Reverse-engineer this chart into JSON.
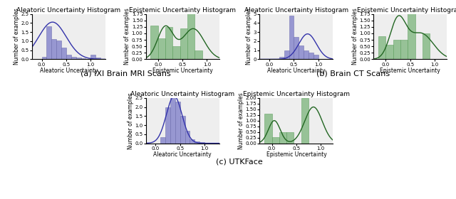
{
  "panels": [
    {
      "title": "Aleatoric Uncertainty Histogram",
      "xlabel": "Aleatoric Uncertainty",
      "ylabel": "Number of examples",
      "color": "#8888cc",
      "edge_color": "#6666aa",
      "curve_color": "#3333aa",
      "xlim": [
        -0.2,
        1.3
      ],
      "ylim": [
        0,
        2.5
      ],
      "yticks": [
        0.0,
        0.5,
        1.0,
        1.5,
        2.0,
        2.5
      ],
      "bar_edges": [
        -0.1,
        0.0,
        0.1,
        0.2,
        0.3,
        0.4,
        0.5,
        0.6,
        0.7,
        0.8,
        0.9,
        1.0,
        1.1,
        1.2
      ],
      "bar_heights": [
        0.0,
        0.15,
        1.8,
        1.1,
        1.05,
        0.65,
        0.25,
        0.15,
        0.1,
        0.05,
        0.0,
        0.25,
        0.1
      ],
      "kde_bimodal": false,
      "kde_mean": 0.22,
      "kde_std": 0.28,
      "kde_scale": 2.05,
      "kde_color": "#3333aa"
    },
    {
      "title": "Epistemic Uncertainty Histogram",
      "xlabel": "Epistemic Uncertainty",
      "ylabel": "Number of examples",
      "color": "#88bb88",
      "edge_color": "#559955",
      "curve_color": "#226622",
      "xlim": [
        -0.25,
        1.25
      ],
      "ylim": [
        0,
        1.75
      ],
      "yticks": [
        0.0,
        0.25,
        0.5,
        0.75,
        1.0,
        1.25,
        1.5,
        1.75
      ],
      "bar_edges": [
        -0.15,
        0.0,
        0.15,
        0.3,
        0.45,
        0.6,
        0.75,
        0.9,
        1.05
      ],
      "bar_heights": [
        1.3,
        0.8,
        1.25,
        0.5,
        1.2,
        1.8,
        0.35,
        0.0
      ],
      "kde_bimodal": true,
      "kde_mean1": 0.15,
      "kde_std1": 0.16,
      "kde_amp1": 1.25,
      "kde_mean2": 0.72,
      "kde_std2": 0.22,
      "kde_amp2": 1.18,
      "kde_color": "#226622"
    },
    {
      "title": "Aleatoric Uncertainty Histogram",
      "xlabel": "Aleatoric Uncertainty",
      "ylabel": "Number of examples",
      "color": "#8888cc",
      "edge_color": "#6666aa",
      "curve_color": "#3333aa",
      "xlim": [
        -0.2,
        1.3
      ],
      "ylim": [
        0,
        5.0
      ],
      "yticks": [
        0,
        1,
        2,
        3,
        4,
        5
      ],
      "bar_edges": [
        -0.1,
        0.0,
        0.1,
        0.2,
        0.3,
        0.4,
        0.5,
        0.6,
        0.7,
        0.8,
        0.9,
        1.0,
        1.1,
        1.2
      ],
      "bar_heights": [
        0.0,
        0.0,
        0.0,
        0.25,
        1.0,
        4.8,
        2.5,
        1.5,
        1.0,
        0.75,
        0.5,
        0.0,
        0.0
      ],
      "kde_bimodal": false,
      "kde_mean": 0.78,
      "kde_std": 0.18,
      "kde_scale": 2.8,
      "kde_color": "#3333aa"
    },
    {
      "title": "Epistemic Uncertainty Histogram",
      "xlabel": "Epistemic Uncertainty",
      "ylabel": "Number of examples",
      "color": "#88bb88",
      "edge_color": "#559955",
      "curve_color": "#226622",
      "xlim": [
        -0.25,
        1.25
      ],
      "ylim": [
        0,
        1.75
      ],
      "yticks": [
        0.0,
        0.25,
        0.5,
        0.75,
        1.0,
        1.25,
        1.5,
        1.75
      ],
      "bar_edges": [
        -0.15,
        0.0,
        0.15,
        0.3,
        0.45,
        0.6,
        0.75,
        0.9,
        1.05
      ],
      "bar_heights": [
        0.9,
        0.55,
        0.75,
        0.75,
        1.8,
        0.0,
        1.0,
        0.0
      ],
      "kde_bimodal": true,
      "kde_mean1": 0.25,
      "kde_std1": 0.16,
      "kde_amp1": 1.5,
      "kde_mean2": 0.72,
      "kde_std2": 0.25,
      "kde_amp2": 1.0,
      "kde_color": "#226622"
    },
    {
      "title": "Aleatoric Uncertainty Histogram",
      "xlabel": "Aleatoric Uncertainty",
      "ylabel": "Number of examples",
      "color": "#8888cc",
      "edge_color": "#6666aa",
      "curve_color": "#3333aa",
      "xlim": [
        -0.2,
        1.3
      ],
      "ylim": [
        0,
        2.5
      ],
      "yticks": [
        0.0,
        0.5,
        1.0,
        1.5,
        2.0,
        2.5
      ],
      "bar_edges": [
        -0.1,
        0.0,
        0.1,
        0.2,
        0.3,
        0.4,
        0.5,
        0.6,
        0.7,
        0.8,
        0.9,
        1.0,
        1.1,
        1.2
      ],
      "bar_heights": [
        0.0,
        0.0,
        0.35,
        2.0,
        2.6,
        2.3,
        1.5,
        0.7,
        0.2,
        0.1,
        0.05,
        0.0,
        0.0
      ],
      "kde_bimodal": false,
      "kde_mean": 0.38,
      "kde_std": 0.16,
      "kde_scale": 2.6,
      "kde_color": "#3333aa"
    },
    {
      "title": "Epistemic Uncertainty Histogram",
      "xlabel": "Epistemic Uncertainty",
      "ylabel": "Number of examples",
      "color": "#88bb88",
      "edge_color": "#559955",
      "curve_color": "#226622",
      "xlim": [
        -0.25,
        1.25
      ],
      "ylim": [
        0,
        2.0
      ],
      "yticks": [
        0.0,
        0.25,
        0.5,
        0.75,
        1.0,
        1.25,
        1.5,
        1.75,
        2.0
      ],
      "bar_edges": [
        -0.15,
        0.0,
        0.15,
        0.3,
        0.45,
        0.6,
        0.75,
        0.9,
        1.05
      ],
      "bar_heights": [
        1.3,
        0.28,
        0.5,
        0.5,
        0.0,
        2.0,
        0.0,
        0.0
      ],
      "kde_bimodal": true,
      "kde_mean1": 0.05,
      "kde_std1": 0.12,
      "kde_amp1": 1.0,
      "kde_mean2": 0.85,
      "kde_std2": 0.18,
      "kde_amp2": 1.6,
      "kde_color": "#226622"
    }
  ],
  "subplot_labels": [
    "(a) IXI Brain MRI Scans",
    "(b) Brain CT Scans",
    "(c) UTKFace"
  ],
  "label_fontsize": 8,
  "title_fontsize": 6.5,
  "tick_fontsize": 5.0,
  "axis_label_fontsize": 5.5,
  "background_color": "#eeeeee"
}
